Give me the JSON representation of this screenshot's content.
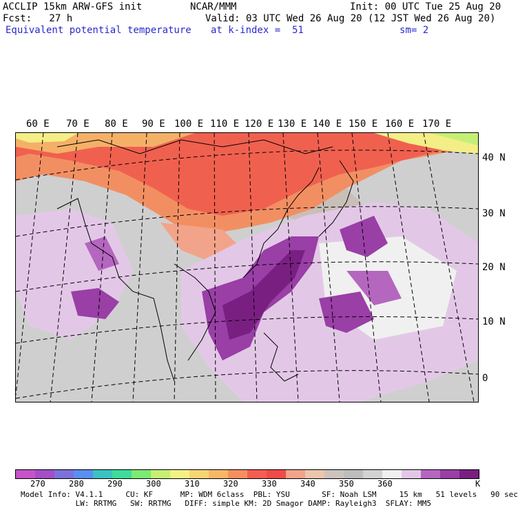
{
  "header": {
    "left_line1": "ACCLIP 15km ARW-GFS init",
    "mid_line1": "NCAR/MMM",
    "right_line1": "Init: 00 UTC Tue 25 Aug 20",
    "left_line2": "Fcst:   27 h",
    "right_line2": "Valid: 03 UTC Wed 26 Aug 20 (12 JST Wed 26 Aug 20)",
    "field_name": "Equivalent potential temperature",
    "level": "at k-index =  51",
    "smoothing": "sm= 2"
  },
  "lon_labels": [
    "60 E",
    "70 E",
    "80 E",
    "90 E",
    "100 E",
    "110 E",
    "120 E",
    "130 E",
    "140 E",
    "150 E",
    "160 E",
    "170 E"
  ],
  "lat_labels": [
    "40 N",
    "30 N",
    "20 N",
    "10 N",
    "0"
  ],
  "colorbar": {
    "colors": [
      "#c653c9",
      "#a44ec7",
      "#7c72db",
      "#5a8ef0",
      "#3cc2c2",
      "#3edc9b",
      "#7cea73",
      "#c5f173",
      "#f3f286",
      "#f5d672",
      "#f7b866",
      "#f58f5f",
      "#f45e52",
      "#ef4c49",
      "#f2a48a",
      "#ecc6ac",
      "#cdc3bd",
      "#bdbdbd",
      "#d2d2d2",
      "#f0f0f0",
      "#e2c8e6",
      "#b566bf",
      "#993fa6",
      "#7a1f82"
    ],
    "tick_labels": [
      "270",
      "280",
      "290",
      "300",
      "310",
      "320",
      "330",
      "340",
      "350",
      "360"
    ],
    "unit": "K"
  },
  "footer": {
    "line1": "Model Info: V4.1.1     CU: KF      MP: WDM 6class  PBL: YSU       SF: Noah LSM     15 km   51 levels   90 sec",
    "line2": "            LW: RRTMG   SW: RRTMG   DIFF: simple KM: 2D Smagor DAMP: Rayleigh3  SFLAY: MM5"
  }
}
